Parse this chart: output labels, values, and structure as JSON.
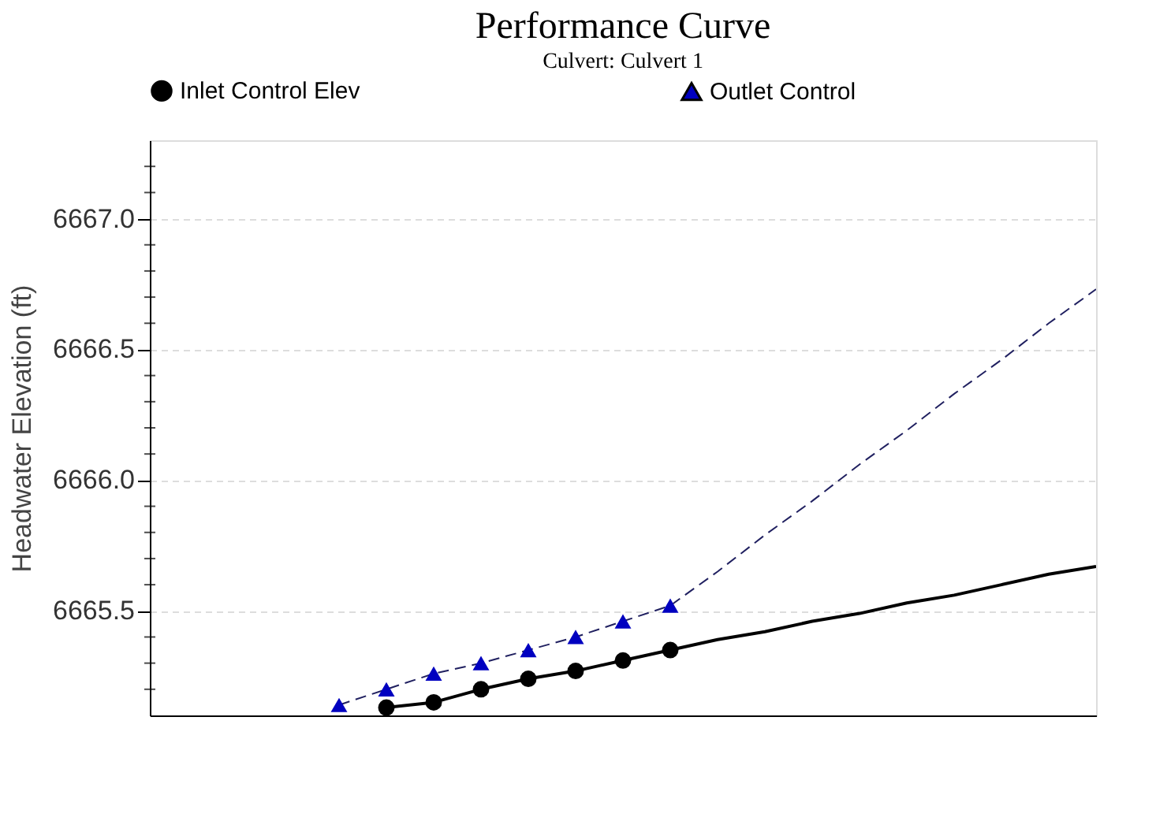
{
  "chart_data": {
    "type": "line",
    "title": "Performance Curve",
    "subtitle": "Culvert: Culvert 1",
    "ylabel": "Headwater Elevation (ft)",
    "categories": [
      null,
      null,
      null,
      null,
      null,
      null,
      null,
      null,
      null,
      null,
      null,
      null,
      null,
      null,
      null,
      null,
      null,
      null,
      null,
      null,
      null
    ],
    "ylim": [
      6665.1,
      6667.3
    ],
    "yticks": [
      {
        "value": 6665.2,
        "label": null
      },
      {
        "value": 6665.3,
        "label": null
      },
      {
        "value": 6665.4,
        "label": null
      },
      {
        "value": 6665.5,
        "label": "6665.5"
      },
      {
        "value": 6665.6,
        "label": null
      },
      {
        "value": 6665.7,
        "label": null
      },
      {
        "value": 6665.8,
        "label": null
      },
      {
        "value": 6665.9,
        "label": null
      },
      {
        "value": 6666.0,
        "label": "6666.0"
      },
      {
        "value": 6666.1,
        "label": null
      },
      {
        "value": 6666.2,
        "label": null
      },
      {
        "value": 6666.3,
        "label": null
      },
      {
        "value": 6666.4,
        "label": null
      },
      {
        "value": 6666.5,
        "label": "6666.5"
      },
      {
        "value": 6666.6,
        "label": null
      },
      {
        "value": 6666.7,
        "label": null
      },
      {
        "value": 6666.8,
        "label": null
      },
      {
        "value": 6666.9,
        "label": null
      },
      {
        "value": 6667.0,
        "label": "6667.0"
      },
      {
        "value": 6667.1,
        "label": null
      },
      {
        "value": 6667.2,
        "label": null
      }
    ],
    "grid": "y",
    "legend": "top",
    "series": [
      {
        "color": "#000000",
        "marker": "none",
        "line_style": "solid",
        "values": [
          null,
          null,
          null,
          null,
          null,
          6665.13,
          6665.15,
          6665.2,
          6665.24,
          6665.27,
          6665.31,
          6665.35,
          6665.39,
          6665.42,
          6665.46,
          6665.49,
          6665.53,
          6665.56,
          6665.6,
          6665.64,
          6665.67
        ]
      },
      {
        "color": "#202060",
        "marker": "none",
        "line_style": "dashed",
        "values": [
          null,
          null,
          null,
          null,
          6665.14,
          6665.2,
          6665.26,
          6665.3,
          6665.35,
          6665.4,
          6665.46,
          6665.52,
          6665.65,
          6665.79,
          6665.92,
          6666.06,
          6666.19,
          6666.33,
          6666.46,
          6666.6,
          6666.73
        ]
      },
      {
        "name": "Inlet Control Elev",
        "type": "scatter",
        "color": "#000000",
        "marker": "circle",
        "values": [
          null,
          null,
          null,
          null,
          null,
          6665.13,
          6665.15,
          6665.2,
          6665.24,
          6665.27,
          6665.31,
          6665.35,
          null,
          null,
          null,
          null,
          null,
          null,
          null,
          null,
          null
        ]
      },
      {
        "name": "Outlet Control",
        "type": "scatter",
        "color": "#0000c0",
        "marker": "triangle",
        "values": [
          null,
          null,
          null,
          null,
          6665.14,
          6665.2,
          6665.26,
          6665.3,
          6665.35,
          6665.4,
          6665.46,
          6665.52,
          null,
          null,
          null,
          null,
          null,
          null,
          null,
          null,
          null
        ]
      }
    ]
  }
}
